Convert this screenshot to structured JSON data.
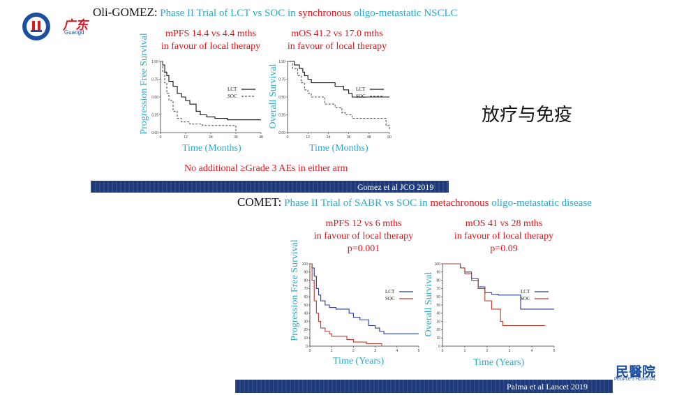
{
  "logo_left": {
    "text": "广东",
    "subtext": "Guangd"
  },
  "logo_right": {
    "text": "民醫院",
    "subtext": "PEOPLE'S HOSPITAL"
  },
  "side_title": "放疗与免疫",
  "study1": {
    "name": "Oli-GOMEZ:",
    "title_a": "Phase II Trial of LCT vs SOC in",
    "title_b": "synchronous",
    "title_c": "oligo-metastatic NSCLC",
    "pfs_line1": "mPFS 14.4  vs 4.4 mths",
    "pfs_line2": "in favour of local therapy",
    "os_line1": "mOS 41.2 vs 17.0 mths",
    "os_line2": "in favour of local therapy",
    "pfs_ylabel": "Progression Free Survival",
    "os_ylabel": "Overall Survival",
    "xlabel": "Time (Months)",
    "ae_note": "No additional ≥Grade 3 AEs in either arm",
    "citation": "Gomez et al JCO 2019"
  },
  "study2": {
    "name": "COMET:",
    "title_a": "Phase II Trial of SABR vs SOC in",
    "title_b": "metachronous",
    "title_c": "oligo-metastatic disease",
    "pfs_line1": "mPFS 12  vs 6 mths",
    "pfs_line2": "in favour of local therapy",
    "pfs_line3": "p=0.001",
    "os_line1": "mOS 41  vs 28 mths",
    "os_line2": "in favour of local therapy",
    "os_line3": "p=0.09",
    "pfs_ylabel": "Progression Free Survival",
    "os_ylabel": "Overall Survival",
    "xlabel": "Time (Years)",
    "citation": "Palma et al Lancet 2019"
  },
  "colors": {
    "cyan": "#2aa9c9",
    "red": "#d9171e",
    "navy": "#1e3a7a",
    "lct_blue": "#2b3a9e",
    "soc_red": "#c0392b"
  },
  "chart_data": [
    {
      "type": "line",
      "ylabel": "Progression Free Survival",
      "xlabel": "Time (Months)",
      "x_ticks": [
        "0",
        "12",
        "24",
        "36",
        "48"
      ],
      "y_ticks": [
        "0.00",
        "0.25",
        "0.50",
        "0.75",
        "1.00"
      ],
      "xlim": [
        0,
        48
      ],
      "ylim": [
        0,
        1
      ],
      "series": [
        {
          "name": "LCT",
          "color": "#111111",
          "dash": "",
          "points": [
            [
              0,
              1
            ],
            [
              1,
              0.95
            ],
            [
              2,
              0.85
            ],
            [
              3,
              0.8
            ],
            [
              4,
              0.72
            ],
            [
              6,
              0.65
            ],
            [
              8,
              0.55
            ],
            [
              10,
              0.5
            ],
            [
              12,
              0.45
            ],
            [
              14,
              0.4
            ],
            [
              17,
              0.3
            ],
            [
              19,
              0.25
            ],
            [
              22,
              0.22
            ],
            [
              26,
              0.2
            ],
            [
              32,
              0.18
            ],
            [
              48,
              0.18
            ]
          ]
        },
        {
          "name": "SOC",
          "color": "#555555",
          "dash": "3,2",
          "points": [
            [
              0,
              1
            ],
            [
              1,
              0.85
            ],
            [
              2,
              0.7
            ],
            [
              3,
              0.55
            ],
            [
              4,
              0.45
            ],
            [
              6,
              0.3
            ],
            [
              8,
              0.2
            ],
            [
              10,
              0.15
            ],
            [
              14,
              0.12
            ],
            [
              20,
              0.1
            ],
            [
              28,
              0.1
            ],
            [
              36,
              0.05
            ],
            [
              36,
              0
            ]
          ]
        }
      ]
    },
    {
      "type": "line",
      "ylabel": "Overall Survival",
      "xlabel": "Time (Months)",
      "x_ticks": [
        "0",
        "12",
        "24",
        "36",
        "48",
        "60"
      ],
      "y_ticks": [
        "0.00",
        "0.25",
        "0.50",
        "0.75",
        "1.00"
      ],
      "xlim": [
        0,
        60
      ],
      "ylim": [
        0,
        1
      ],
      "series": [
        {
          "name": "LCT",
          "color": "#111111",
          "dash": "",
          "points": [
            [
              0,
              1
            ],
            [
              4,
              0.95
            ],
            [
              7,
              0.9
            ],
            [
              9,
              0.85
            ],
            [
              10,
              0.8
            ],
            [
              12,
              0.75
            ],
            [
              14,
              0.7
            ],
            [
              25,
              0.7
            ],
            [
              28,
              0.65
            ],
            [
              33,
              0.6
            ],
            [
              36,
              0.55
            ],
            [
              38,
              0.5
            ],
            [
              60,
              0.5
            ]
          ]
        },
        {
          "name": "SOC",
          "color": "#555555",
          "dash": "3,2",
          "points": [
            [
              0,
              1
            ],
            [
              3,
              0.9
            ],
            [
              6,
              0.8
            ],
            [
              8,
              0.7
            ],
            [
              10,
              0.6
            ],
            [
              12,
              0.55
            ],
            [
              14,
              0.5
            ],
            [
              20,
              0.5
            ],
            [
              22,
              0.4
            ],
            [
              28,
              0.35
            ],
            [
              32,
              0.28
            ],
            [
              34,
              0.25
            ],
            [
              38,
              0.2
            ],
            [
              57,
              0.2
            ],
            [
              58,
              0.1
            ],
            [
              60,
              0.05
            ]
          ]
        }
      ]
    },
    {
      "type": "line",
      "ylabel": "Progression Free Survival",
      "xlabel": "Time (Years)",
      "x_ticks": [
        "0",
        "1",
        "2",
        "3",
        "4",
        "5"
      ],
      "y_ticks": [
        "0",
        "10",
        "20",
        "30",
        "40",
        "50",
        "60",
        "70",
        "80",
        "90",
        "100"
      ],
      "xlim": [
        0,
        5
      ],
      "ylim": [
        0,
        100
      ],
      "series": [
        {
          "name": "LCT",
          "color": "#2b3a9e",
          "dash": "",
          "points": [
            [
              0,
              100
            ],
            [
              0.1,
              95
            ],
            [
              0.2,
              85
            ],
            [
              0.3,
              70
            ],
            [
              0.4,
              62
            ],
            [
              0.5,
              55
            ],
            [
              0.7,
              50
            ],
            [
              0.9,
              47
            ],
            [
              1.2,
              45
            ],
            [
              1.6,
              45
            ],
            [
              1.8,
              40
            ],
            [
              2.0,
              35
            ],
            [
              2.3,
              32
            ],
            [
              2.7,
              25
            ],
            [
              3.0,
              22
            ],
            [
              3.2,
              18
            ],
            [
              3.4,
              15
            ],
            [
              5,
              15
            ]
          ]
        },
        {
          "name": "SOC",
          "color": "#c0392b",
          "dash": "",
          "points": [
            [
              0,
              100
            ],
            [
              0.1,
              80
            ],
            [
              0.2,
              55
            ],
            [
              0.3,
              40
            ],
            [
              0.4,
              30
            ],
            [
              0.5,
              22
            ],
            [
              0.7,
              18
            ],
            [
              0.9,
              15
            ],
            [
              1.0,
              12
            ],
            [
              1.6,
              12
            ],
            [
              1.7,
              8
            ],
            [
              2.0,
              5
            ],
            [
              2.6,
              3
            ],
            [
              3.2,
              3
            ],
            [
              3.3,
              0
            ]
          ]
        }
      ]
    },
    {
      "type": "line",
      "ylabel": "Overall Survival",
      "xlabel": "Time (Years)",
      "x_ticks": [
        "0",
        "1",
        "2",
        "3",
        "4",
        "5"
      ],
      "y_ticks": [
        "0",
        "10",
        "20",
        "30",
        "40",
        "50",
        "60",
        "70",
        "80",
        "90",
        "100"
      ],
      "xlim": [
        0,
        5
      ],
      "ylim": [
        0,
        100
      ],
      "series": [
        {
          "name": "LCT",
          "color": "#2b3a9e",
          "dash": "",
          "points": [
            [
              0,
              100
            ],
            [
              0.5,
              100
            ],
            [
              0.8,
              95
            ],
            [
              1.0,
              90
            ],
            [
              1.3,
              82
            ],
            [
              1.6,
              72
            ],
            [
              1.9,
              65
            ],
            [
              2.2,
              63
            ],
            [
              2.5,
              62
            ],
            [
              3.2,
              62
            ],
            [
              3.5,
              45
            ],
            [
              4.0,
              45
            ],
            [
              5,
              45
            ]
          ]
        },
        {
          "name": "SOC",
          "color": "#c0392b",
          "dash": "",
          "points": [
            [
              0,
              100
            ],
            [
              0.5,
              100
            ],
            [
              0.8,
              95
            ],
            [
              1.0,
              88
            ],
            [
              1.3,
              80
            ],
            [
              1.6,
              70
            ],
            [
              1.9,
              55
            ],
            [
              2.2,
              45
            ],
            [
              2.6,
              30
            ],
            [
              2.7,
              25
            ],
            [
              3.5,
              25
            ],
            [
              4.6,
              25
            ]
          ]
        }
      ]
    }
  ]
}
